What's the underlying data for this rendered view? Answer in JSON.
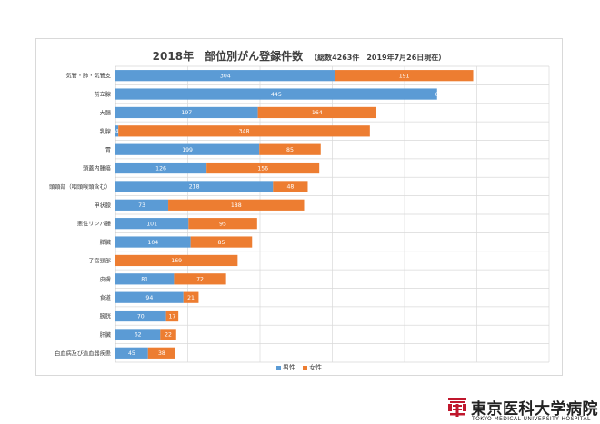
{
  "chart_data": {
    "type": "bar",
    "orientation": "horizontal",
    "stacked": true,
    "title": "2018年　部位別がん登録件数",
    "subtitle": "（総数4263件　2019年7月26日現在）",
    "categories": [
      "気管・肺・気管支",
      "前立腺",
      "大腸",
      "乳腺",
      "胃",
      "頭蓋内腫瘍",
      "頭頸部（咽頭喉頭含む）",
      "甲状腺",
      "悪性リンパ腫",
      "膵臓",
      "子宮頸部",
      "皮膚",
      "食道",
      "膀胱",
      "肝臓",
      "白血病及び造血器疾患"
    ],
    "series": [
      {
        "name": "男性",
        "color": "#5b9bd5",
        "values": [
          304,
          445,
          197,
          4,
          199,
          126,
          218,
          73,
          101,
          104,
          0,
          81,
          94,
          70,
          62,
          45
        ],
        "labels": [
          "304",
          "445",
          "197",
          "4",
          "199",
          "126",
          "218",
          "73",
          "101",
          "104",
          "",
          "81",
          "94",
          "70",
          "62",
          "45"
        ]
      },
      {
        "name": "女性",
        "color": "#ed7d31",
        "values": [
          191,
          0,
          164,
          348,
          85,
          156,
          48,
          188,
          95,
          85,
          169,
          72,
          21,
          17,
          22,
          38
        ],
        "labels": [
          "191",
          "0",
          "164",
          "348",
          "85",
          "156",
          "48",
          "188",
          "95",
          "85",
          "169",
          "72",
          "21",
          "17",
          "22",
          "38"
        ]
      }
    ],
    "xlim": [
      0,
      600
    ],
    "xticks": [
      0,
      100,
      200,
      300,
      400,
      500
    ],
    "gridlines": true,
    "legend": "bottom"
  },
  "hospital": {
    "name_jp": "東京医科大学病院",
    "name_en": "TOKYO MEDICAL UNIVERSITY HOSPITAL",
    "logo_color": "#c0172d"
  }
}
